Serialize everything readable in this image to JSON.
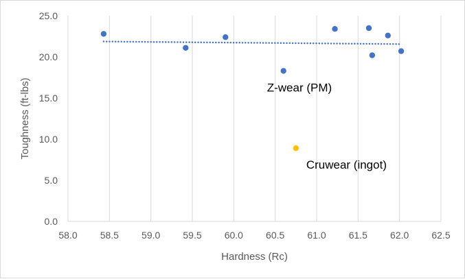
{
  "chart_data": {
    "type": "scatter",
    "title": "",
    "xlabel": "Hardness (Rc)",
    "ylabel": "Toughness (ft-lbs)",
    "xlim": [
      58.0,
      62.5
    ],
    "ylim": [
      0.0,
      25.0
    ],
    "xticks": [
      "58.0",
      "58.5",
      "59.0",
      "59.5",
      "60.0",
      "60.5",
      "61.0",
      "61.5",
      "62.0",
      "62.5"
    ],
    "yticks": [
      "0.0",
      "5.0",
      "10.0",
      "15.0",
      "20.0",
      "25.0"
    ],
    "grid": "vertical",
    "legend": "none",
    "series": [
      {
        "color": "#4472c4",
        "points": [
          {
            "x": 58.43,
            "y": 22.8
          },
          {
            "x": 59.42,
            "y": 21.1
          },
          {
            "x": 59.9,
            "y": 22.4
          },
          {
            "x": 60.6,
            "y": 18.3
          },
          {
            "x": 61.22,
            "y": 23.4
          },
          {
            "x": 61.63,
            "y": 23.5
          },
          {
            "x": 61.67,
            "y": 20.2
          },
          {
            "x": 61.86,
            "y": 22.6
          },
          {
            "x": 62.02,
            "y": 20.7
          }
        ],
        "trendline": {
          "type": "linear",
          "color": "#4472c4",
          "style": "dotted"
        }
      },
      {
        "color": "#ffc000",
        "points": [
          {
            "x": 60.75,
            "y": 8.9
          }
        ]
      }
    ],
    "annotations": [
      {
        "text": "Z-wear (PM)",
        "x": 60.6,
        "y": 18.3
      },
      {
        "text": "Cruwear (ingot)",
        "x": 60.75,
        "y": 8.9
      }
    ]
  }
}
